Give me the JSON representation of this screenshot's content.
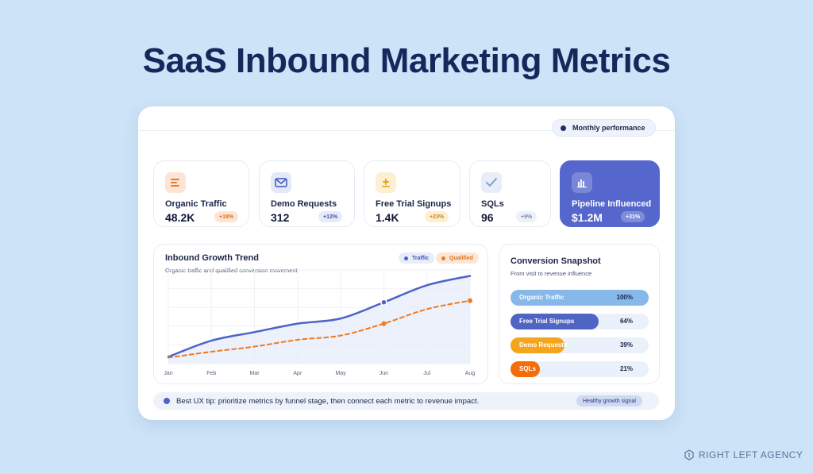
{
  "page": {
    "title": "SaaS Inbound Marketing Metrics"
  },
  "header": {
    "period_pill": "Monthly performance"
  },
  "kpis": [
    {
      "label": "Organic Traffic",
      "value": "48.2K",
      "change": "+18%",
      "icon": "lines-icon",
      "accent": "#f07a2a"
    },
    {
      "label": "Demo Requests",
      "value": "312",
      "change": "+12%",
      "icon": "mail-icon",
      "accent": "#3f55b5"
    },
    {
      "label": "Free Trial Signups",
      "value": "1.4K",
      "change": "+23%",
      "icon": "plus-icon",
      "accent": "#e8a21a"
    },
    {
      "label": "SQLs",
      "value": "96",
      "change": "+9%",
      "icon": "check-icon",
      "accent": "#7a9bc7"
    },
    {
      "label": "Pipeline Influenced",
      "value": "$1.2M",
      "change": "+31%",
      "icon": "bar-chart-icon",
      "accent": "#ffffff"
    }
  ],
  "trend": {
    "title": "Inbound Growth Trend",
    "subtitle": "Organic traffic and qualified conversion movement",
    "legend": [
      {
        "name": "Traffic",
        "color": "#4d63c9"
      },
      {
        "name": "Qualified",
        "color": "#ee7a22"
      }
    ]
  },
  "chart_data": {
    "type": "line",
    "title": "Inbound Growth Trend",
    "categories": [
      "Jan",
      "Feb",
      "Mar",
      "Apr",
      "May",
      "Jun",
      "Jul",
      "Aug"
    ],
    "series": [
      {
        "name": "Traffic",
        "values": [
          8,
          27,
          37,
          47,
          53,
          72,
          92,
          103
        ],
        "color": "#4d63c9"
      },
      {
        "name": "Qualified",
        "values": [
          7,
          14,
          20,
          28,
          33,
          47,
          64,
          74
        ],
        "color": "#ee7a22"
      }
    ],
    "ylim": [
      0,
      110
    ],
    "grid": true
  },
  "snapshot": {
    "title": "Conversion Snapshot",
    "subtitle": "From visit to revenue influence",
    "rows": [
      {
        "label": "Organic Traffic",
        "pct": "100%",
        "value": 100,
        "color": "#86b8ea"
      },
      {
        "label": "Free Trial Signups",
        "pct": "64%",
        "value": 64,
        "color": "#5064c4"
      },
      {
        "label": "Demo Requests",
        "pct": "39%",
        "value": 39,
        "color": "#f5a51c"
      },
      {
        "label": "SQLs",
        "pct": "21%",
        "value": 21,
        "color": "#f56d0a"
      }
    ]
  },
  "tip": {
    "text": "Best UX tip: prioritize metrics by funnel stage, then connect each metric to revenue impact.",
    "badge": "Healthy growth signal"
  },
  "footer": {
    "agency": "RIGHT LEFT AGENCY"
  }
}
